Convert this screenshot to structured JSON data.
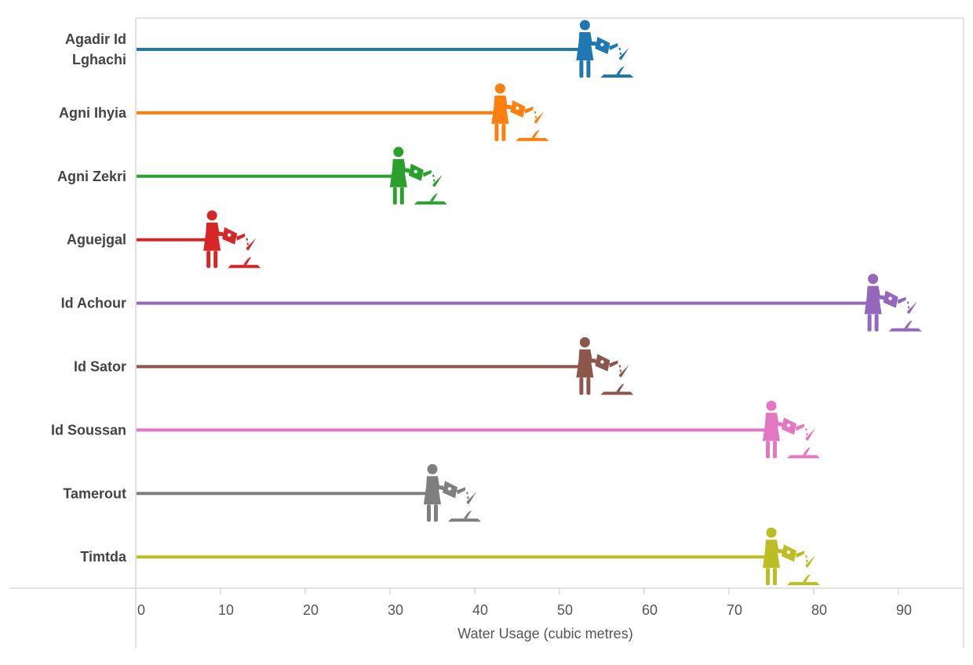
{
  "chart_data": {
    "type": "bar",
    "style": "lollipop with pictogram markers (person watering a plant)",
    "categories": [
      "Agadir  Id Lghachi",
      "Agni Ihyia",
      "Agni Zekri",
      "Aguejgal",
      "Id Achour",
      "Id Sator",
      "Id Soussan",
      "Tamerout",
      "Timtda"
    ],
    "category_lines": [
      [
        "Agadir  Id",
        "Lghachi"
      ],
      [
        "Agni Ihyia"
      ],
      [
        "Agni Zekri"
      ],
      [
        "Aguejgal"
      ],
      [
        "Id Achour"
      ],
      [
        "Id Sator"
      ],
      [
        "Id Soussan"
      ],
      [
        "Tamerout"
      ],
      [
        "Timtda"
      ]
    ],
    "values": [
      53,
      43,
      31,
      9,
      87,
      53,
      75,
      35,
      75
    ],
    "colors": [
      "#1f77b4",
      "#ff7f0e",
      "#2ca02c",
      "#d62728",
      "#9467bd",
      "#8c564b",
      "#e377c2",
      "#7f7f7f",
      "#bcbd22"
    ],
    "xlabel": "Water Usage (cubic metres)",
    "ylabel": "",
    "xlim": [
      0,
      95
    ],
    "x_ticks": [
      0,
      10,
      20,
      30,
      40,
      50,
      60,
      70,
      80,
      90
    ],
    "grid": false,
    "orientation": "horizontal",
    "marker_icon": "person-watering-plant-icon"
  }
}
